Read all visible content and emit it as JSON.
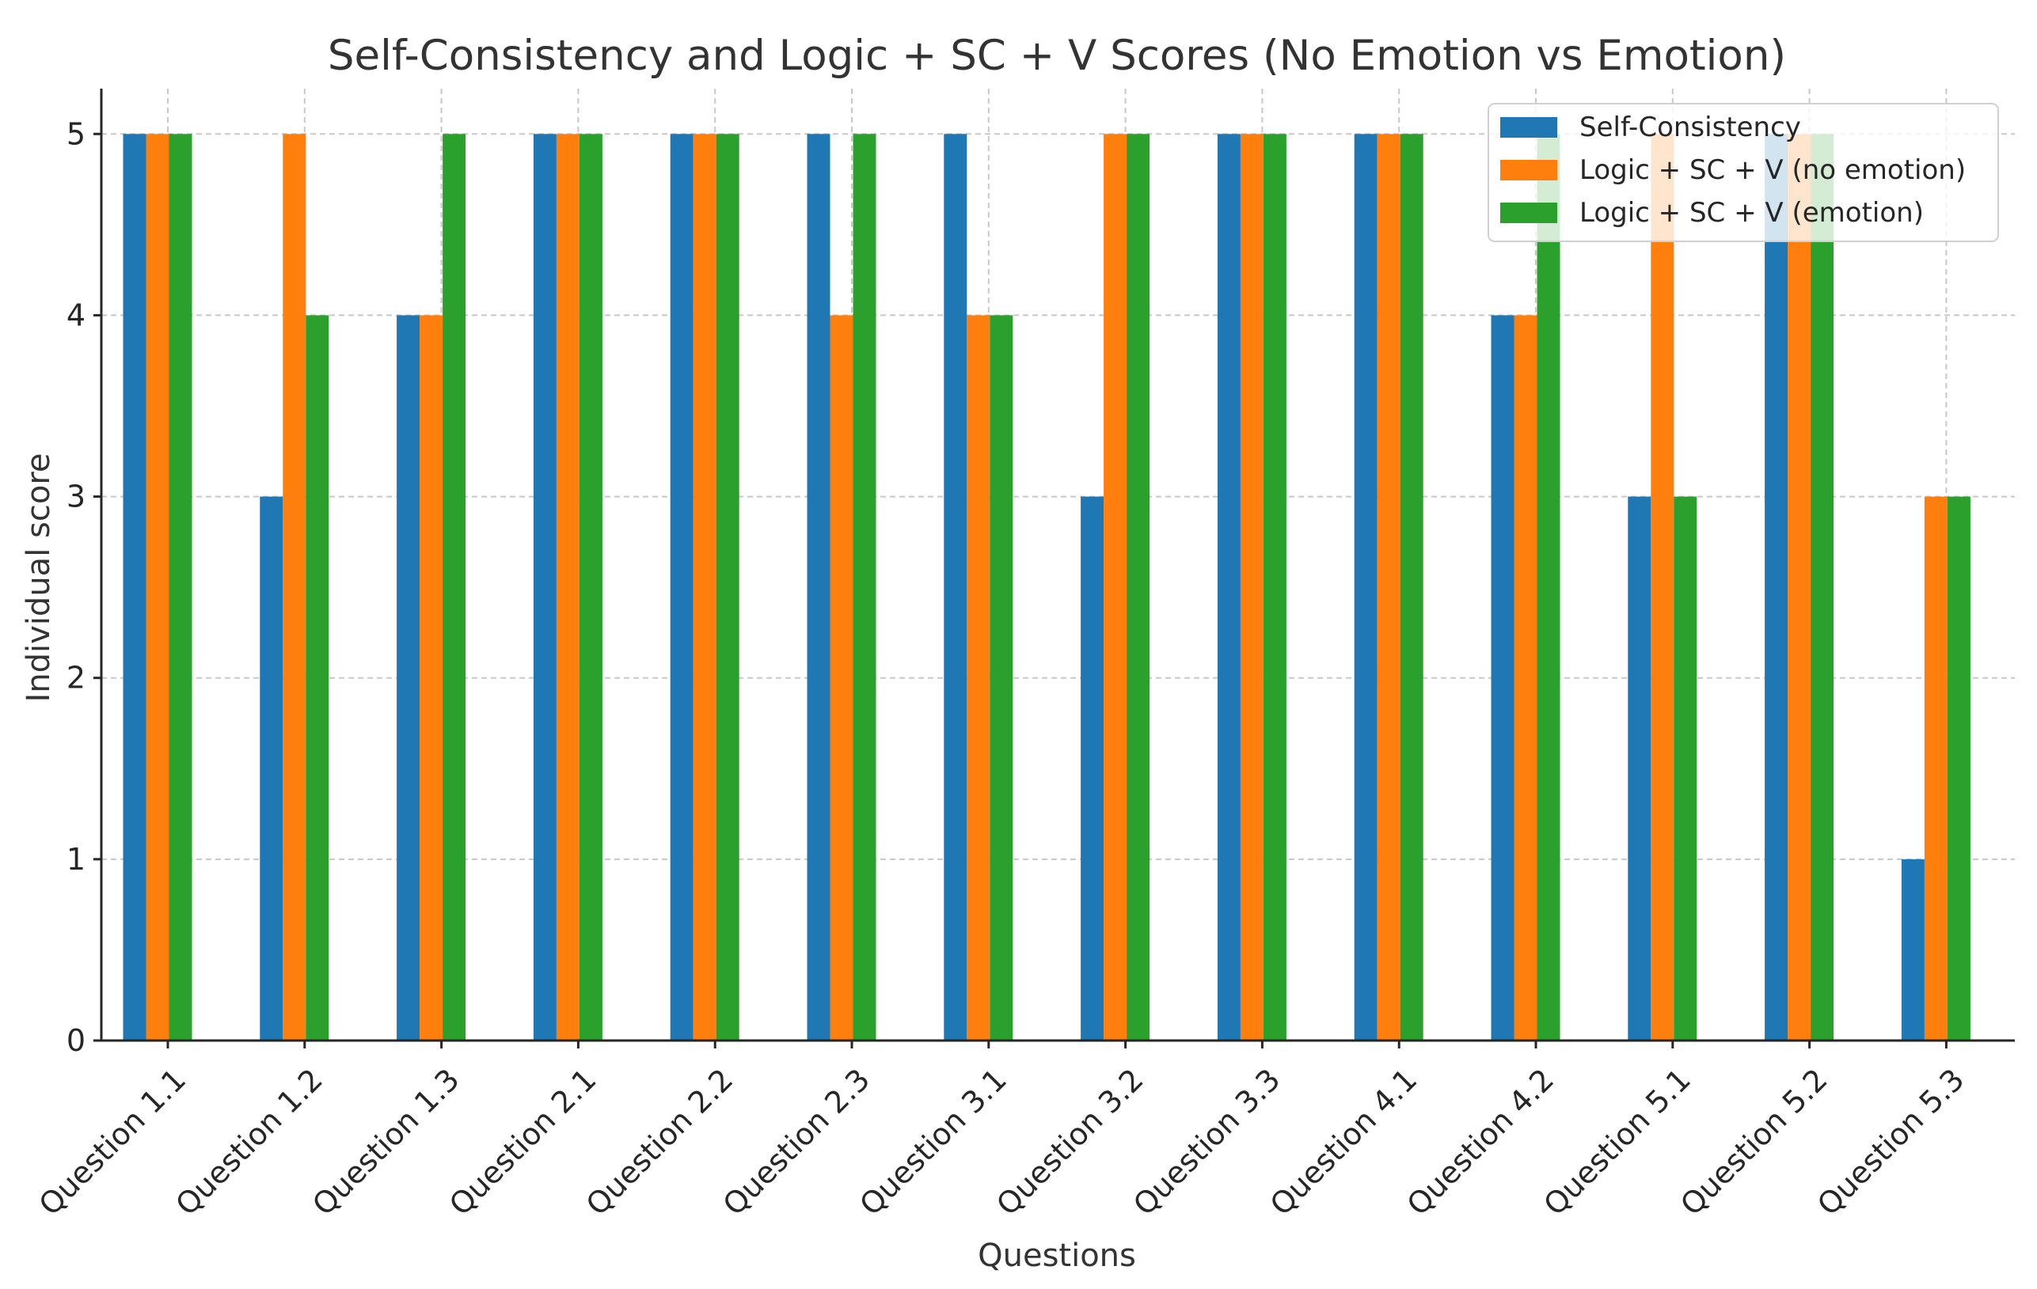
{
  "chart_data": {
    "type": "bar",
    "title": "Self-Consistency and Logic + SC + V Scores (No Emotion vs Emotion)",
    "xlabel": "Questions",
    "ylabel": "Individual score",
    "ylim": [
      0,
      5.25
    ],
    "yticks": [
      0,
      1,
      2,
      3,
      4,
      5
    ],
    "grid": true,
    "legend_position": "top-right",
    "categories": [
      "Question 1.1",
      "Question 1.2",
      "Question 1.3",
      "Question 2.1",
      "Question 2.2",
      "Question 2.3",
      "Question 3.1",
      "Question 3.2",
      "Question 3.3",
      "Question 4.1",
      "Question 4.2",
      "Question 5.1",
      "Question 5.2",
      "Question 5.3"
    ],
    "series": [
      {
        "name": "Self-Consistency",
        "color": "#1f77b4",
        "values": [
          5,
          3,
          4,
          5,
          5,
          5,
          5,
          3,
          5,
          5,
          4,
          3,
          5,
          1
        ]
      },
      {
        "name": "Logic + SC + V (no emotion)",
        "color": "#ff7f0e",
        "values": [
          5,
          5,
          4,
          5,
          5,
          4,
          4,
          5,
          5,
          5,
          4,
          5,
          5,
          3
        ]
      },
      {
        "name": "Logic + SC + V (emotion)",
        "color": "#2ca02c",
        "values": [
          5,
          4,
          5,
          5,
          5,
          5,
          4,
          5,
          5,
          5,
          5,
          3,
          5,
          3
        ]
      }
    ]
  }
}
